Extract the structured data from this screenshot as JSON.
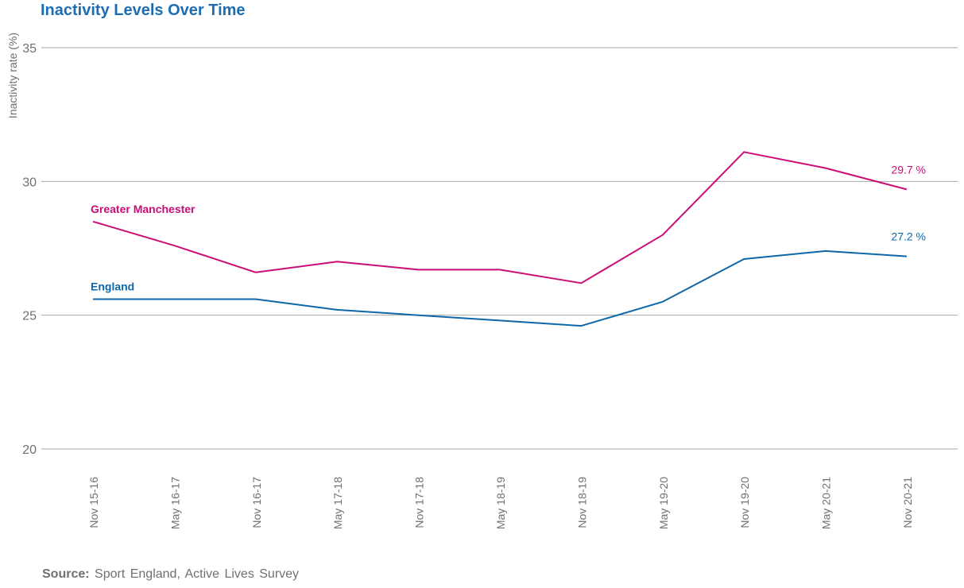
{
  "chart_data": {
    "type": "line",
    "title": "Inactivity Levels Over Time",
    "xlabel": "",
    "ylabel": "Inactivity rate (%)",
    "ylim": [
      20,
      35
    ],
    "yticks": [
      20,
      25,
      30,
      35
    ],
    "grid": true,
    "categories": [
      "Nov 15-16",
      "May 16-17",
      "Nov 16-17",
      "May 17-18",
      "Nov 17-18",
      "May 18-19",
      "Nov 18-19",
      "May 19-20",
      "Nov 19-20",
      "May 20-21",
      "Nov 20-21"
    ],
    "series": [
      {
        "name": "Greater Manchester",
        "color": "#cc0c76",
        "values": [
          28.5,
          27.6,
          26.6,
          27.0,
          26.7,
          26.7,
          26.2,
          28.0,
          31.1,
          30.5,
          29.7
        ],
        "end_label": "29.7 %"
      },
      {
        "name": "England",
        "color": "#0d67a8",
        "values": [
          25.6,
          25.6,
          25.6,
          25.2,
          25.0,
          24.8,
          24.6,
          25.5,
          27.1,
          27.4,
          27.2
        ],
        "end_label": "27.2 %"
      }
    ]
  },
  "source": {
    "label": "Source:",
    "text": "Sport England,  Active Lives Survey"
  },
  "colors": {
    "title": "#1c6db4",
    "grid": "#a6a6a6",
    "axis_text": "#707070"
  }
}
